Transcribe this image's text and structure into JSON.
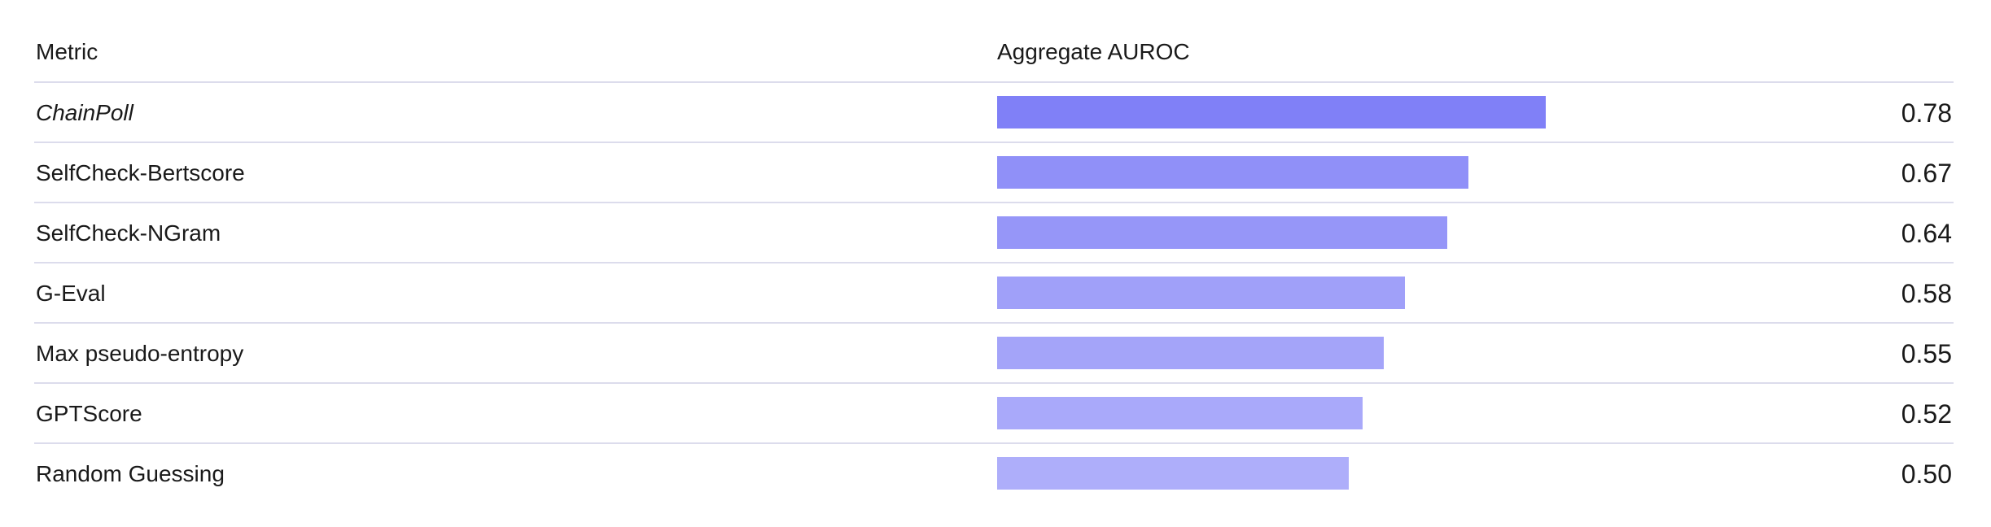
{
  "chart_data": {
    "type": "bar",
    "orientation": "horizontal",
    "header": {
      "metric": "Metric",
      "score": "Aggregate AUROC"
    },
    "categories": [
      "ChainPoll",
      "SelfCheck-Bertscore",
      "SelfCheck-NGram",
      "G-Eval",
      "Max pseudo-entropy",
      "GPTScore",
      "Random Guessing"
    ],
    "values": [
      0.78,
      0.67,
      0.64,
      0.58,
      0.55,
      0.52,
      0.5
    ],
    "value_labels": [
      "0.78",
      "0.67",
      "0.64",
      "0.58",
      "0.55",
      "0.52",
      "0.50"
    ],
    "italic": [
      true,
      false,
      false,
      false,
      false,
      false,
      false
    ],
    "colors": [
      "#8080f7",
      "#9090f8",
      "#9696f8",
      "#a0a0f9",
      "#a4a4f9",
      "#a9a9fa",
      "#aeaefa"
    ],
    "xlim": [
      0,
      1.1
    ]
  }
}
